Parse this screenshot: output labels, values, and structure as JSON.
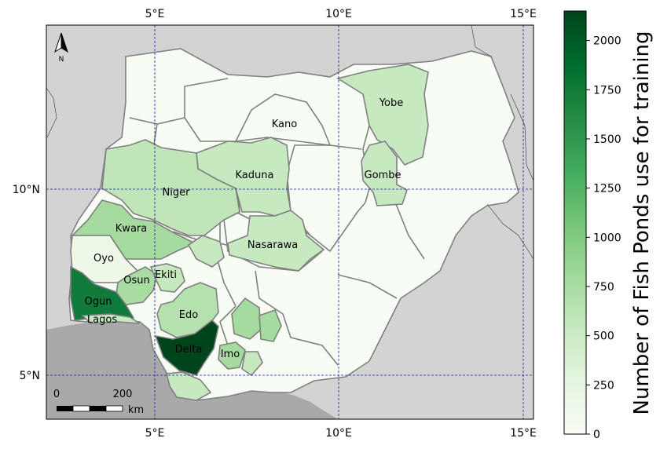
{
  "map": {
    "lon_ticks_top": [
      "5°E",
      "10°E",
      "15°E"
    ],
    "lon_ticks_bottom": [
      "5°E",
      "10°E",
      "15°E"
    ],
    "lat_ticks": [
      "10°N",
      "5°N"
    ],
    "north_label": "N",
    "scale_bar": {
      "start": "0",
      "end": "200",
      "unit": "km"
    },
    "colors": {
      "ocean": "#a9a9a9",
      "land_outside": "#d3d3d3",
      "state_border": "#808080",
      "graticule": "#1a1aa0",
      "nigeria_base": "#f7fcf5"
    },
    "states": [
      {
        "name": "Yobe",
        "color": "#c7e9c0"
      },
      {
        "name": "Kano",
        "color": "#f7fcf5"
      },
      {
        "name": "Kaduna",
        "color": "#c7e9c0"
      },
      {
        "name": "Gombe",
        "color": "#c7e9c0"
      },
      {
        "name": "Niger",
        "color": "#bfe5b8"
      },
      {
        "name": "Kwara",
        "color": "#a5db9f"
      },
      {
        "name": "Nasarawa",
        "color": "#c7e9c0"
      },
      {
        "name": "Oyo",
        "color": "#edf8e9"
      },
      {
        "name": "Osun",
        "color": "#a8dca1"
      },
      {
        "name": "Ekiti",
        "color": "#c7e9c0"
      },
      {
        "name": "Ogun",
        "color": "#107a3a"
      },
      {
        "name": "Lagos",
        "color": "#c7e9c0"
      },
      {
        "name": "Edo",
        "color": "#b5e1ae"
      },
      {
        "name": "Delta",
        "color": "#00441b"
      },
      {
        "name": "Imo",
        "color": "#a5db9f"
      }
    ]
  },
  "colorbar": {
    "label": "Number of Fish Ponds use for training",
    "min": 0,
    "max": 2150,
    "ticks": [
      "0",
      "250",
      "500",
      "750",
      "1000",
      "1250",
      "1500",
      "1750",
      "2000"
    ],
    "gradient": [
      "#f7fcf5",
      "#e5f5e0",
      "#c7e9c0",
      "#a1d99b",
      "#74c476",
      "#41ab5d",
      "#238b45",
      "#006d2c",
      "#00441b"
    ]
  }
}
